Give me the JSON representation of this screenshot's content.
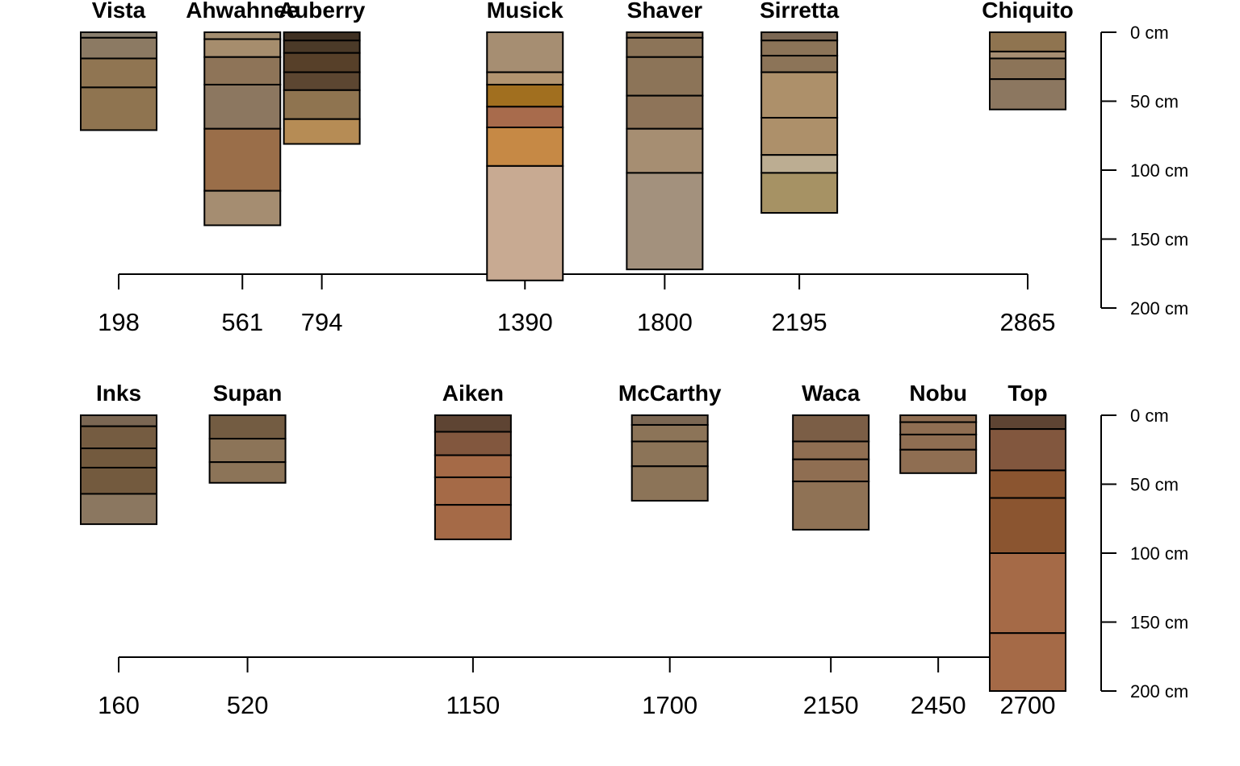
{
  "chart_data": [
    {
      "type": "soil-profile-sketch",
      "x_label": "",
      "depth_unit": "cm",
      "depth_range": [
        0,
        200
      ],
      "depth_ticks": [
        0,
        50,
        100,
        150,
        200
      ],
      "depth_tick_labels": [
        "0 cm",
        "50 cm",
        "100 cm",
        "150 cm",
        "200 cm"
      ],
      "x_ticks": [
        198,
        561,
        794,
        1390,
        1800,
        2195,
        2865
      ],
      "x_tick_labels": [
        "198",
        "561",
        "794",
        "1390",
        "1800",
        "2195",
        "2865"
      ],
      "profiles": [
        {
          "name": "Vista",
          "x": 198,
          "horizons": [
            {
              "top": 0,
              "bottom": 4,
              "color": "#8a7f6e"
            },
            {
              "top": 4,
              "bottom": 19,
              "color": "#8c7a63"
            },
            {
              "top": 19,
              "bottom": 40,
              "color": "#907552"
            },
            {
              "top": 40,
              "bottom": 71,
              "color": "#8f7450"
            }
          ]
        },
        {
          "name": "Ahwahnee",
          "x": 561,
          "horizons": [
            {
              "top": 0,
              "bottom": 5,
              "color": "#a48e70"
            },
            {
              "top": 5,
              "bottom": 18,
              "color": "#a68d6d"
            },
            {
              "top": 18,
              "bottom": 38,
              "color": "#8e7458"
            },
            {
              "top": 38,
              "bottom": 70,
              "color": "#8c7760"
            },
            {
              "top": 70,
              "bottom": 115,
              "color": "#9a6e49"
            },
            {
              "top": 115,
              "bottom": 140,
              "color": "#a58d71"
            }
          ]
        },
        {
          "name": "Auberry",
          "x": 794,
          "horizons": [
            {
              "top": 0,
              "bottom": 6,
              "color": "#3f3022"
            },
            {
              "top": 6,
              "bottom": 15,
              "color": "#4b3a28"
            },
            {
              "top": 15,
              "bottom": 29,
              "color": "#574029"
            },
            {
              "top": 29,
              "bottom": 42,
              "color": "#5c4631"
            },
            {
              "top": 42,
              "bottom": 63,
              "color": "#8f7450"
            },
            {
              "top": 63,
              "bottom": 81,
              "color": "#b68c55"
            }
          ]
        },
        {
          "name": "Musick",
          "x": 1390,
          "horizons": [
            {
              "top": 0,
              "bottom": 29,
              "color": "#a68e72"
            },
            {
              "top": 29,
              "bottom": 38,
              "color": "#b29470"
            },
            {
              "top": 38,
              "bottom": 54,
              "color": "#a16f1f"
            },
            {
              "top": 54,
              "bottom": 69,
              "color": "#a86b4c"
            },
            {
              "top": 69,
              "bottom": 97,
              "color": "#c68945"
            },
            {
              "top": 97,
              "bottom": 180,
              "color": "#c8aa92"
            }
          ]
        },
        {
          "name": "Shaver",
          "x": 1800,
          "horizons": [
            {
              "top": 0,
              "bottom": 4,
              "color": "#8b7458"
            },
            {
              "top": 4,
              "bottom": 18,
              "color": "#8c7458"
            },
            {
              "top": 18,
              "bottom": 46,
              "color": "#8c7458"
            },
            {
              "top": 46,
              "bottom": 70,
              "color": "#8e7459"
            },
            {
              "top": 70,
              "bottom": 102,
              "color": "#a68e72"
            },
            {
              "top": 102,
              "bottom": 172,
              "color": "#a3917d"
            }
          ]
        },
        {
          "name": "Sirretta",
          "x": 2195,
          "horizons": [
            {
              "top": 0,
              "bottom": 6,
              "color": "#7b6753"
            },
            {
              "top": 6,
              "bottom": 17,
              "color": "#8c7458"
            },
            {
              "top": 17,
              "bottom": 29,
              "color": "#8c7458"
            },
            {
              "top": 29,
              "bottom": 62,
              "color": "#ad906a"
            },
            {
              "top": 62,
              "bottom": 89,
              "color": "#ad906a"
            },
            {
              "top": 89,
              "bottom": 102,
              "color": "#bcad92"
            },
            {
              "top": 102,
              "bottom": 131,
              "color": "#a69264"
            }
          ]
        },
        {
          "name": "Chiquito",
          "x": 2865,
          "horizons": [
            {
              "top": 0,
              "bottom": 14,
              "color": "#8f7450"
            },
            {
              "top": 14,
              "bottom": 19,
              "color": "#a68e72"
            },
            {
              "top": 19,
              "bottom": 34,
              "color": "#8c7458"
            },
            {
              "top": 34,
              "bottom": 56,
              "color": "#8c7760"
            }
          ]
        }
      ]
    },
    {
      "type": "soil-profile-sketch",
      "x_label": "",
      "depth_unit": "cm",
      "depth_range": [
        0,
        200
      ],
      "depth_ticks": [
        0,
        50,
        100,
        150,
        200
      ],
      "depth_tick_labels": [
        "0 cm",
        "50 cm",
        "100 cm",
        "150 cm",
        "200 cm"
      ],
      "x_ticks": [
        160,
        520,
        1150,
        1700,
        2150,
        2450,
        2700
      ],
      "x_tick_labels": [
        "160",
        "520",
        "1150",
        "1700",
        "2150",
        "2450",
        "2700"
      ],
      "profiles": [
        {
          "name": "Inks",
          "x": 160,
          "horizons": [
            {
              "top": 0,
              "bottom": 8,
              "color": "#7b6753"
            },
            {
              "top": 8,
              "bottom": 24,
              "color": "#755c41"
            },
            {
              "top": 24,
              "bottom": 38,
              "color": "#735a3e"
            },
            {
              "top": 38,
              "bottom": 57,
              "color": "#735a3e"
            },
            {
              "top": 57,
              "bottom": 79,
              "color": "#8b7760"
            }
          ]
        },
        {
          "name": "Supan",
          "x": 520,
          "horizons": [
            {
              "top": 0,
              "bottom": 17,
              "color": "#735c42"
            },
            {
              "top": 17,
              "bottom": 34,
              "color": "#8c7458"
            },
            {
              "top": 34,
              "bottom": 49,
              "color": "#8c7458"
            }
          ]
        },
        {
          "name": "Aiken",
          "x": 1150,
          "horizons": [
            {
              "top": 0,
              "bottom": 12,
              "color": "#5e4433"
            },
            {
              "top": 12,
              "bottom": 29,
              "color": "#82573e"
            },
            {
              "top": 29,
              "bottom": 45,
              "color": "#a56a47"
            },
            {
              "top": 45,
              "bottom": 65,
              "color": "#a56a47"
            },
            {
              "top": 65,
              "bottom": 90,
              "color": "#a56a47"
            }
          ]
        },
        {
          "name": "McCarthy",
          "x": 1700,
          "horizons": [
            {
              "top": 0,
              "bottom": 7,
              "color": "#7b6753"
            },
            {
              "top": 7,
              "bottom": 19,
              "color": "#8c7458"
            },
            {
              "top": 19,
              "bottom": 37,
              "color": "#8c7458"
            },
            {
              "top": 37,
              "bottom": 62,
              "color": "#8c7458"
            }
          ]
        },
        {
          "name": "Waca",
          "x": 2150,
          "horizons": [
            {
              "top": 0,
              "bottom": 19,
              "color": "#7b5e46"
            },
            {
              "top": 19,
              "bottom": 32,
              "color": "#8f6e52"
            },
            {
              "top": 32,
              "bottom": 48,
              "color": "#8f6e52"
            },
            {
              "top": 48,
              "bottom": 83,
              "color": "#8f7255"
            }
          ]
        },
        {
          "name": "Nobu",
          "x": 2450,
          "horizons": [
            {
              "top": 0,
              "bottom": 5,
              "color": "#8f6e52"
            },
            {
              "top": 5,
              "bottom": 14,
              "color": "#8f6e52"
            },
            {
              "top": 14,
              "bottom": 25,
              "color": "#8f6e52"
            },
            {
              "top": 25,
              "bottom": 42,
              "color": "#8f6e52"
            }
          ]
        },
        {
          "name": "Top",
          "x": 2700,
          "horizons": [
            {
              "top": 0,
              "bottom": 10,
              "color": "#5e4433"
            },
            {
              "top": 10,
              "bottom": 40,
              "color": "#82573e"
            },
            {
              "top": 40,
              "bottom": 60,
              "color": "#8b5530"
            },
            {
              "top": 60,
              "bottom": 100,
              "color": "#8b5530"
            },
            {
              "top": 100,
              "bottom": 158,
              "color": "#a56a47"
            },
            {
              "top": 158,
              "bottom": 200,
              "color": "#a56a47"
            }
          ]
        }
      ]
    }
  ]
}
